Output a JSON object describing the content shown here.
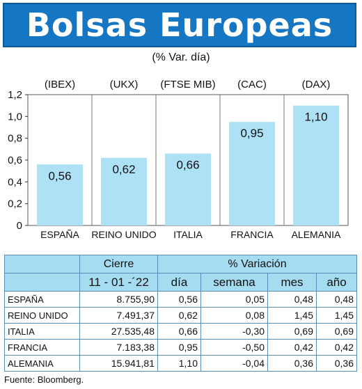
{
  "title": "Bolsas Europeas",
  "subtitle": "(% Var. día)",
  "chart_data": {
    "type": "bar",
    "categories": [
      "ESPAÑA",
      "REINO UNIDO",
      "ITALIA",
      "FRANCIA",
      "ALEMANIA"
    ],
    "index_labels": [
      "(IBEX)",
      "(UKX)",
      "(FTSE MIB)",
      "(CAC)",
      "(DAX)"
    ],
    "values": [
      0.56,
      0.62,
      0.66,
      0.95,
      1.1
    ],
    "value_labels": [
      "0,56",
      "0,62",
      "0,66",
      "0,95",
      "1,10"
    ],
    "ylim": [
      0,
      1.2
    ],
    "yticks": [
      0,
      0.2,
      0.4,
      0.6,
      0.8,
      1.0,
      1.2
    ],
    "ytick_labels": [
      "0",
      "0,2",
      "0,4",
      "0,6",
      "0,8",
      "1,0",
      "1,2"
    ],
    "grid": "vertical separators between categories",
    "bar_color": "#aee1f6"
  },
  "table": {
    "header_cierre": "Cierre",
    "header_variacion": "% Variación",
    "date": "11 - 01 -´22",
    "columns": [
      "día",
      "semana",
      "mes",
      "año"
    ],
    "rows": [
      {
        "name": "ESPAÑA",
        "cierre": "8.755,90",
        "dia": "0,56",
        "semana": "0,05",
        "mes": "0,48",
        "ano": "0,48"
      },
      {
        "name": "REINO UNIDO",
        "cierre": "7.491,37",
        "dia": "0,62",
        "semana": "0,08",
        "mes": "1,45",
        "ano": "1,45"
      },
      {
        "name": "ITALIA",
        "cierre": "27.535,48",
        "dia": "0,66",
        "semana": "-0,30",
        "mes": "0,69",
        "ano": "0,69"
      },
      {
        "name": "FRANCIA",
        "cierre": "7.183,38",
        "dia": "0,95",
        "semana": "-0,50",
        "mes": "0,42",
        "ano": "0,42"
      },
      {
        "name": "ALEMANIA",
        "cierre": "15.941,81",
        "dia": "1,10",
        "semana": "-0,04",
        "mes": "0,36",
        "ano": "0,36"
      }
    ]
  },
  "source": "Fuente: Bloomberg.",
  "colors": {
    "title_bg": "#1577c4",
    "table_header_bg": "#a6dcf2"
  }
}
